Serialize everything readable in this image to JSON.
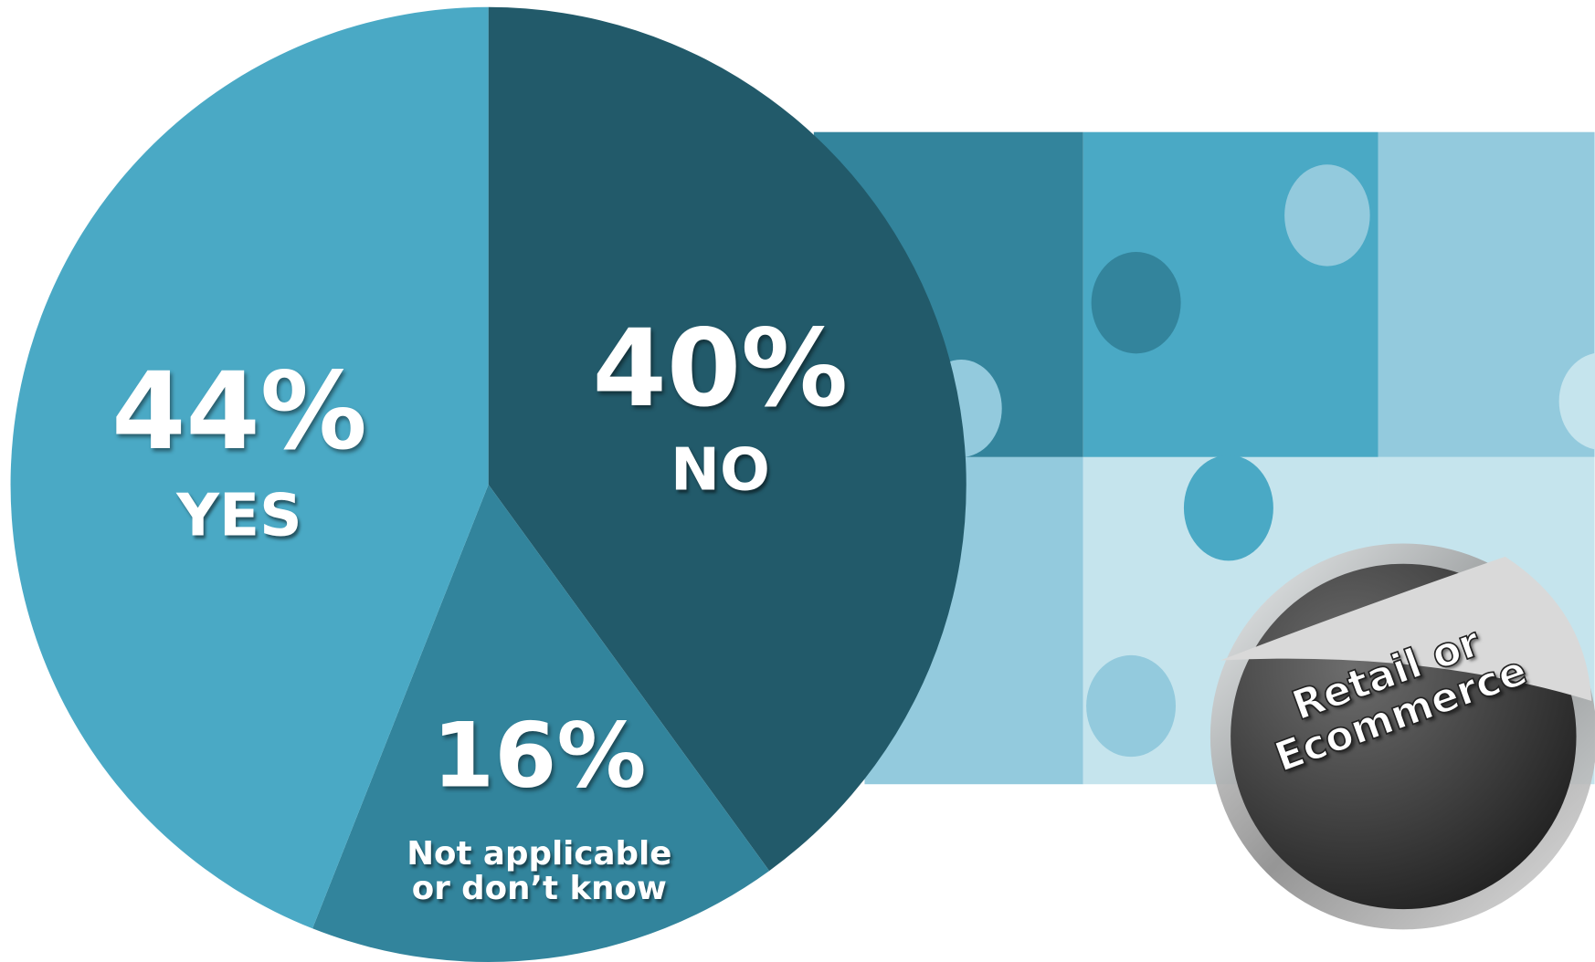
{
  "chart_data": {
    "type": "pie",
    "categories": [
      "NO",
      "Not applicable\nor don’t know",
      "YES"
    ],
    "values": [
      40,
      16,
      44
    ],
    "value_labels": [
      "40%",
      "16%",
      "44%"
    ],
    "colors": [
      "#225a6a",
      "#32849c",
      "#4aa9c5"
    ],
    "badge": "Retail or\nEcommerce"
  }
}
